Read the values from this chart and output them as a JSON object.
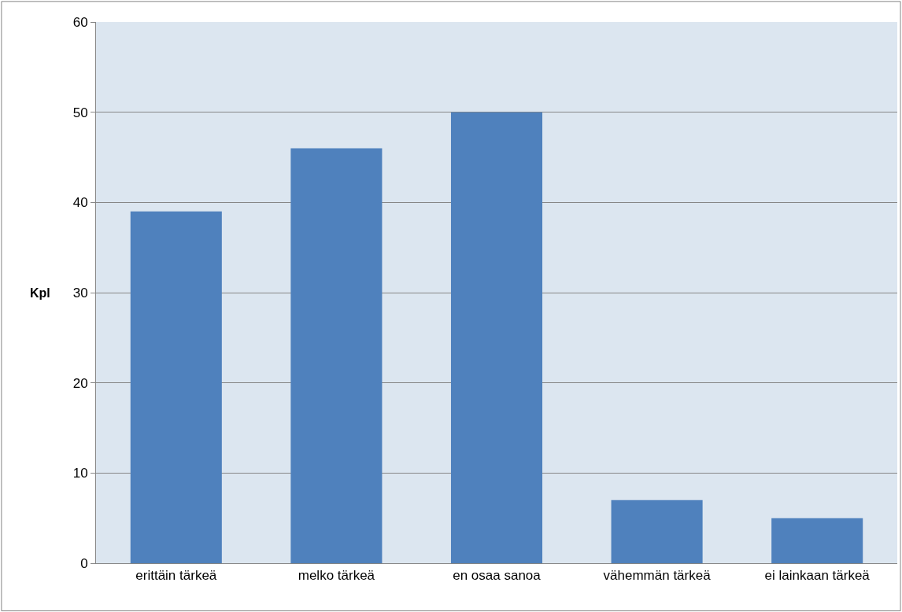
{
  "chart_data": {
    "type": "bar",
    "ylabel": "Kpl",
    "categories": [
      "erittäin tärkeä",
      "melko tärkeä",
      "en osaa sanoa",
      "vähemmän tärkeä",
      "ei lainkaan tärkeä"
    ],
    "values": [
      39,
      46,
      50,
      7,
      5
    ],
    "color": "#4f81bd",
    "ylim": [
      0,
      60
    ],
    "yticks": [
      0,
      10,
      20,
      30,
      40,
      50,
      60
    ],
    "grid": "y",
    "legend": false
  }
}
